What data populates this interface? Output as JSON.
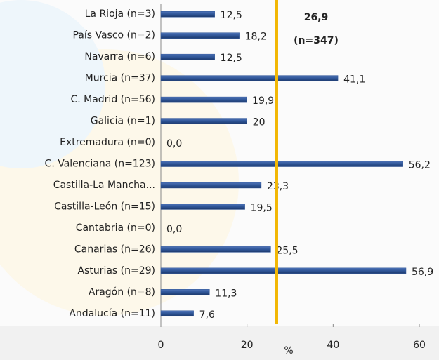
{
  "chart_data": {
    "type": "barh",
    "categories": [
      "La Rioja (n=3)",
      "País Vasco (n=2)",
      "Navarra (n=6)",
      "Murcia (n=37)",
      "C. Madrid (n=56)",
      "Galicia (n=1)",
      "Extremadura (n=0)",
      "C. Valenciana (n=123)",
      "Castilla-La Mancha...",
      "Castilla-León (n=15)",
      "Cantabria (n=0)",
      "Canarias (n=26)",
      "Asturias (n=29)",
      "Aragón (n=8)",
      "Andalucía (n=11)"
    ],
    "values": [
      12.5,
      18.2,
      12.5,
      41.1,
      19.9,
      20,
      0,
      56.2,
      23.3,
      19.5,
      0,
      25.5,
      56.9,
      11.3,
      7.6
    ],
    "value_labels": [
      "12,5",
      "18,2",
      "12,5",
      "41,1",
      "19,9",
      "20",
      "0,0",
      "56,2",
      "23,3",
      "19,5",
      "0,0",
      "25,5",
      "56,9",
      "11,3",
      "7,6"
    ],
    "color": "#2f5597",
    "xlim": [
      0,
      60
    ],
    "xticks": [
      0,
      20,
      40,
      60
    ],
    "xlabel": "%",
    "reference_line": {
      "value": 26.9,
      "label": "26,9",
      "sublabel": "(n=347)",
      "color": "#f2b705"
    }
  }
}
